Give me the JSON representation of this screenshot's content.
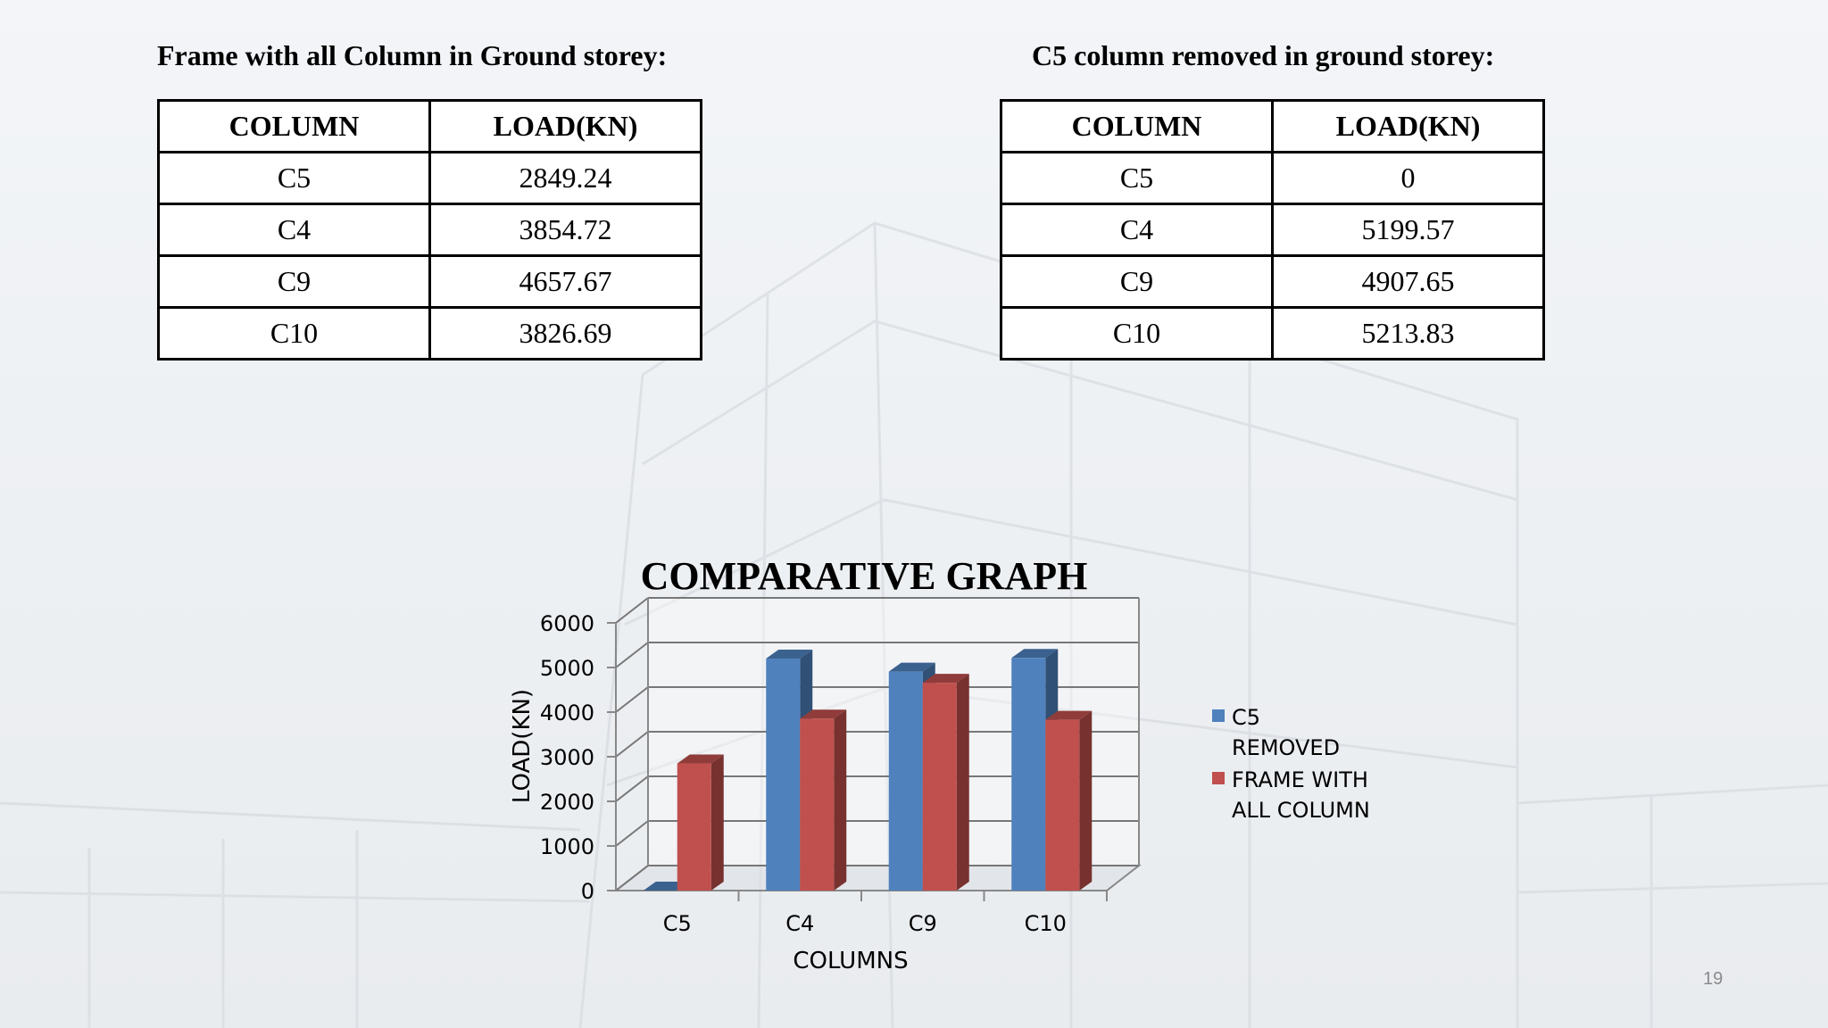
{
  "left_section": {
    "heading": "Frame with all Column in Ground storey:",
    "columns": [
      "COLUMN",
      "LOAD(KN)"
    ],
    "rows": [
      [
        "C5",
        "2849.24"
      ],
      [
        "C4",
        "3854.72"
      ],
      [
        "C9",
        "4657.67"
      ],
      [
        "C10",
        "3826.69"
      ]
    ]
  },
  "right_section": {
    "heading": "C5 column removed in ground storey:",
    "columns": [
      "COLUMN",
      "LOAD(KN)"
    ],
    "rows": [
      [
        "C5",
        "0"
      ],
      [
        "C4",
        "5199.57"
      ],
      [
        "C9",
        "4907.65"
      ],
      [
        "C10",
        "5213.83"
      ]
    ]
  },
  "chart_data": {
    "type": "bar",
    "title": "COMPARATIVE GRAPH",
    "xlabel": "COLUMNS",
    "ylabel": "LOAD(KN)",
    "categories": [
      "C5",
      "C4",
      "C9",
      "C10"
    ],
    "ylim": [
      0,
      6000
    ],
    "yticks": [
      0,
      1000,
      2000,
      3000,
      4000,
      5000,
      6000
    ],
    "grid": true,
    "legend_position": "right",
    "series": [
      {
        "name": "C5 REMOVED",
        "legend_lines": [
          "C5",
          "REMOVED"
        ],
        "color": "#4f81bd",
        "values": [
          0,
          5199.57,
          4907.65,
          5213.83
        ]
      },
      {
        "name": "FRAME WITH ALL COLUMN",
        "legend_lines": [
          "FRAME WITH",
          "ALL COLUMN"
        ],
        "color": "#c0504d",
        "values": [
          2849.24,
          3854.72,
          4657.67,
          3826.69
        ]
      }
    ]
  },
  "page_number": "19"
}
